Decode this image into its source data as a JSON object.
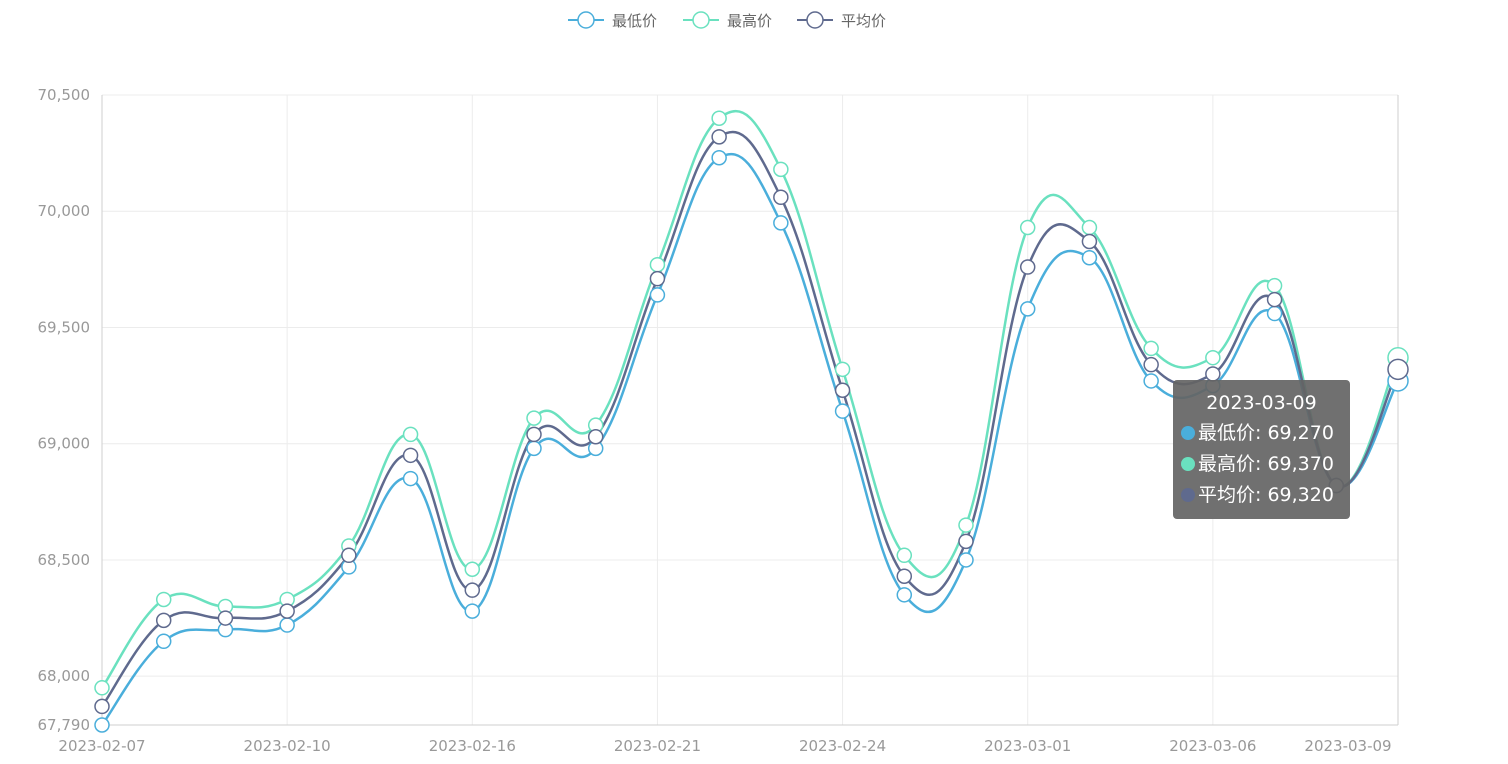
{
  "chart_data": {
    "type": "line",
    "smooth": true,
    "x": [
      "2023-02-07",
      "2023-02-08",
      "2023-02-09",
      "2023-02-10",
      "2023-02-13",
      "2023-02-14",
      "2023-02-16",
      "2023-02-17",
      "2023-02-20",
      "2023-02-21",
      "2023-02-22",
      "2023-02-23",
      "2023-02-24",
      "2023-02-27",
      "2023-02-28",
      "2023-03-01",
      "2023-03-02",
      "2023-03-03",
      "2023-03-06",
      "2023-03-07",
      "2023-03-08",
      "2023-03-09"
    ],
    "x_tick_labels": [
      "2023-02-07",
      "2023-02-10",
      "2023-02-16",
      "2023-02-21",
      "2023-02-24",
      "2023-03-01",
      "2023-03-06",
      "2023-03-09"
    ],
    "y_tick_labels": [
      "70,500",
      "70,000",
      "69,500",
      "69,000",
      "68,500",
      "68,000",
      "67,790"
    ],
    "ylim": [
      67790,
      70500
    ],
    "y_ticks": [
      70500,
      70000,
      69500,
      69000,
      68500,
      68000,
      67790
    ],
    "grid": true,
    "legend_position": "top-center",
    "series": [
      {
        "name": "最低价",
        "color": "#4aaedb",
        "values": [
          67790,
          68150,
          68200,
          68220,
          68470,
          68850,
          68280,
          68980,
          68980,
          69640,
          70230,
          69950,
          69140,
          68350,
          68500,
          69580,
          69800,
          69270,
          69250,
          69560,
          68820,
          69270
        ]
      },
      {
        "name": "最高价",
        "color": "#6ae1bf",
        "values": [
          67950,
          68330,
          68300,
          68330,
          68560,
          69040,
          68460,
          69110,
          69080,
          69770,
          70400,
          70180,
          69320,
          68520,
          68650,
          69930,
          69930,
          69410,
          69370,
          69680,
          68820,
          69370
        ]
      },
      {
        "name": "平均价",
        "color": "#5f6a8e",
        "values": [
          67870,
          68240,
          68250,
          68280,
          68520,
          68950,
          68370,
          69040,
          69030,
          69710,
          70320,
          70060,
          69230,
          68430,
          68580,
          69760,
          69870,
          69340,
          69300,
          69620,
          68820,
          69320
        ]
      }
    ],
    "tooltip": {
      "title": "2023-03-09",
      "rows": [
        {
          "label": "最低价: 69,270",
          "color": "#4aaedb"
        },
        {
          "label": "最高价: 69,370",
          "color": "#6ae1bf"
        },
        {
          "label": "平均价: 69,320",
          "color": "#5f6a8e"
        }
      ]
    }
  }
}
